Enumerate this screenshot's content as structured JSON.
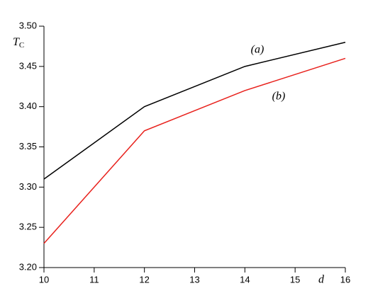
{
  "chart_data": {
    "type": "line",
    "ylabel": {
      "main": "T",
      "sub": "C"
    },
    "xlabel": "d",
    "x": [
      10,
      12,
      14,
      16
    ],
    "series": [
      {
        "name": "(a)",
        "color": "#000000",
        "values": [
          3.31,
          3.4,
          3.45,
          3.48
        ]
      },
      {
        "name": "(b)",
        "color": "#e8211c",
        "values": [
          3.23,
          3.37,
          3.42,
          3.46
        ]
      }
    ],
    "xlim": [
      10,
      16
    ],
    "xticks": [
      10,
      11,
      12,
      13,
      14,
      15,
      16
    ],
    "ylim": [
      3.2,
      3.5
    ],
    "yticks": [
      {
        "value": 3.2,
        "label": "3.20"
      },
      {
        "value": 3.25,
        "label": "3.25"
      },
      {
        "value": 3.3,
        "label": "3.30"
      },
      {
        "value": 3.35,
        "label": "3.35"
      },
      {
        "value": 3.4,
        "label": "3.40"
      },
      {
        "value": 3.45,
        "label": "3.45"
      },
      {
        "value": 3.5,
        "label": "3.50"
      }
    ]
  }
}
